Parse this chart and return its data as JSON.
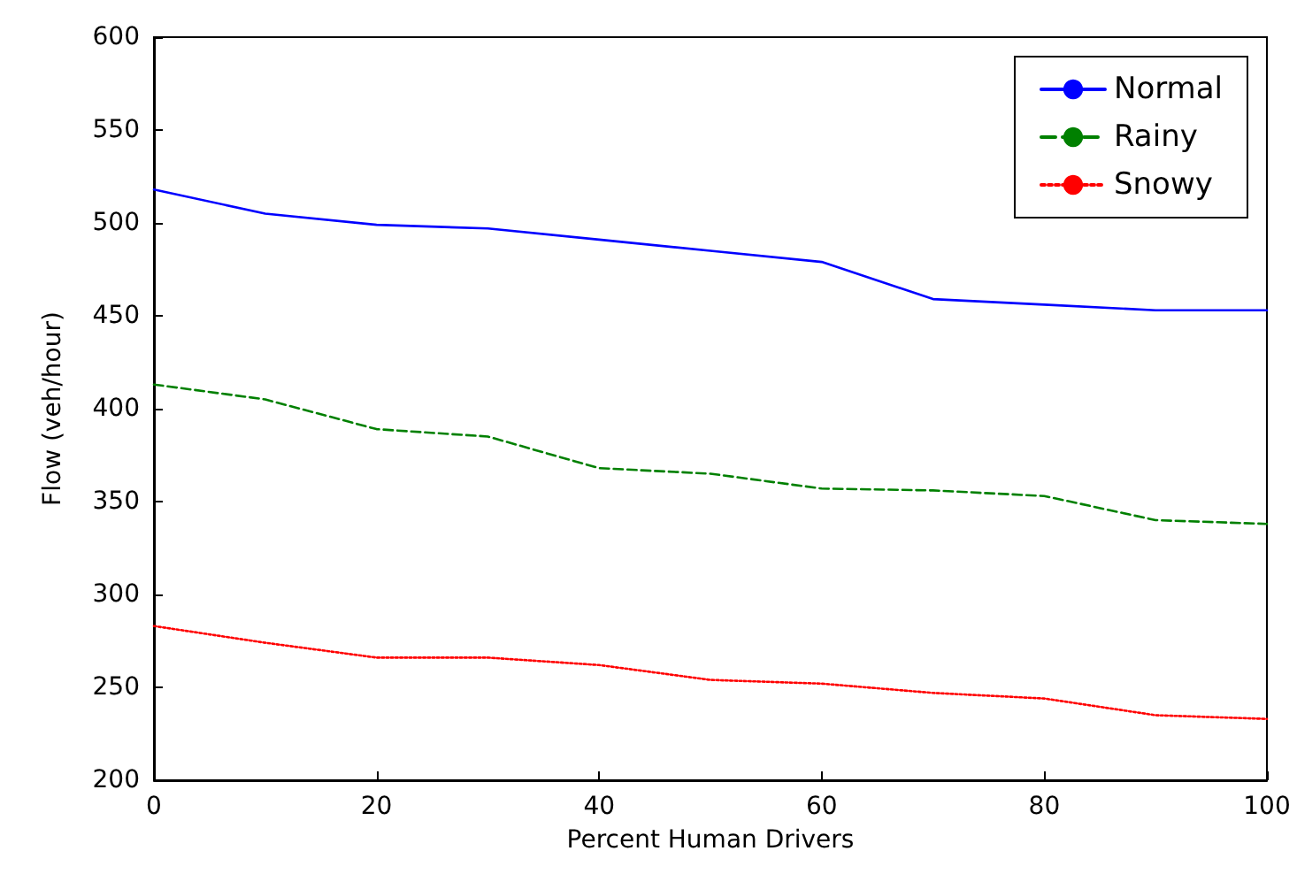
{
  "chart_data": {
    "type": "line",
    "xlabel": "Percent Human Drivers",
    "ylabel": "Flow (veh/hour)",
    "x": [
      0,
      10,
      20,
      30,
      40,
      50,
      60,
      70,
      80,
      90,
      100
    ],
    "series": [
      {
        "name": "Normal",
        "color": "#0000ff",
        "line_style": "solid",
        "values": [
          518,
          505,
          499,
          497,
          491,
          485,
          479,
          459,
          456,
          453,
          453
        ]
      },
      {
        "name": "Rainy",
        "color": "#008000",
        "line_style": "dashed",
        "values": [
          413,
          405,
          389,
          385,
          368,
          365,
          357,
          356,
          353,
          340,
          338
        ]
      },
      {
        "name": "Snowy",
        "color": "#ff0000",
        "line_style": "dotted",
        "values": [
          283,
          274,
          266,
          266,
          262,
          254,
          252,
          247,
          244,
          235,
          233
        ]
      }
    ],
    "xlim": [
      0,
      100
    ],
    "xticks": [
      0,
      20,
      40,
      60,
      80,
      100
    ],
    "ylim": [
      200,
      600
    ],
    "yticks": [
      200,
      250,
      300,
      350,
      400,
      450,
      500,
      550,
      600
    ],
    "grid": false,
    "legend": "top right",
    "marker": "none"
  }
}
